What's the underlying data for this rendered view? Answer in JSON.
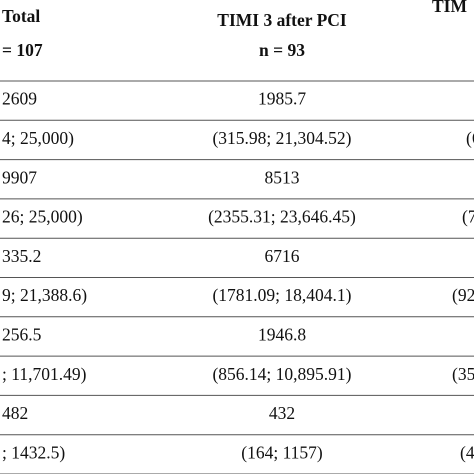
{
  "header": {
    "columns": [
      {
        "title": "Total",
        "subtitle": "= 107"
      },
      {
        "title": "TIMI 3 after PCI",
        "subtitle": "n = 93"
      },
      {
        "title": "TIM"
      }
    ]
  },
  "table": {
    "rows": [
      [
        "2609",
        "1985.7"
      ],
      [
        "4; 25,000)",
        "(315.98; 21,304.52)",
        "(6"
      ],
      [
        "9907",
        "8513"
      ],
      [
        "26; 25,000)",
        "(2355.31; 23,646.45)",
        "(7"
      ],
      [
        "335.2",
        "6716"
      ],
      [
        "9; 21,388.6)",
        "(1781.09; 18,404.1)",
        "(92"
      ],
      [
        "256.5",
        "1946.8"
      ],
      [
        "; 11,701.49)",
        "(856.14; 10,895.91)",
        "(35"
      ],
      [
        "482",
        "432"
      ],
      [
        "; 1432.5)",
        "(164; 1157)",
        "(4"
      ]
    ]
  }
}
